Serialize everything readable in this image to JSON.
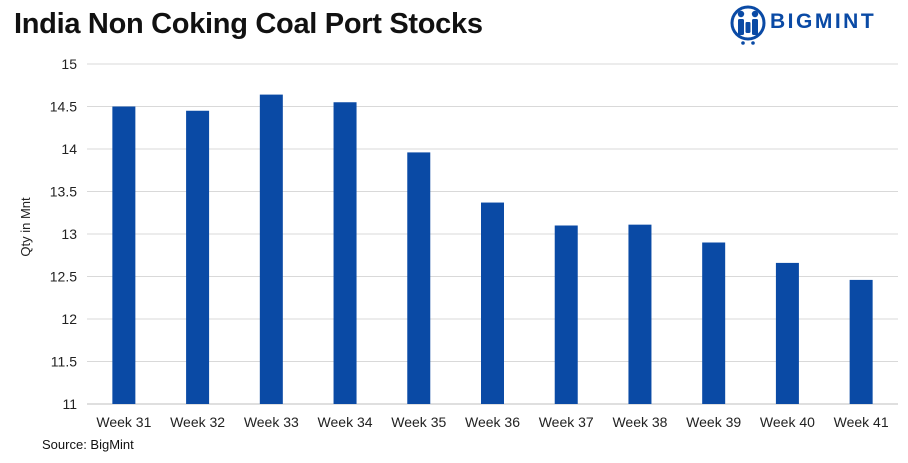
{
  "title": "India Non Coking Coal Port Stocks",
  "logo": {
    "text": "BIGMINT",
    "icon": "people-mark-icon",
    "color": "#0a4aa5"
  },
  "source": "Source: BigMint",
  "chart_data": {
    "type": "bar",
    "title": "India Non Coking Coal Port Stocks",
    "xlabel": "",
    "ylabel": "Qty in Mnt",
    "categories": [
      "Week 31",
      "Week 32",
      "Week 33",
      "Week 34",
      "Week 35",
      "Week 36",
      "Week 37",
      "Week 38",
      "Week 39",
      "Week 40",
      "Week 41"
    ],
    "values": [
      14.5,
      14.45,
      14.64,
      14.55,
      13.96,
      13.37,
      13.1,
      13.11,
      12.9,
      12.66,
      12.46
    ],
    "ylim": [
      11,
      15
    ],
    "yticks": [
      "11",
      "11.5",
      "12",
      "12.5",
      "13",
      "13.5",
      "14",
      "14.5",
      "15"
    ],
    "grid": true,
    "legend": "none",
    "bar_color": "#0a4aa5"
  }
}
